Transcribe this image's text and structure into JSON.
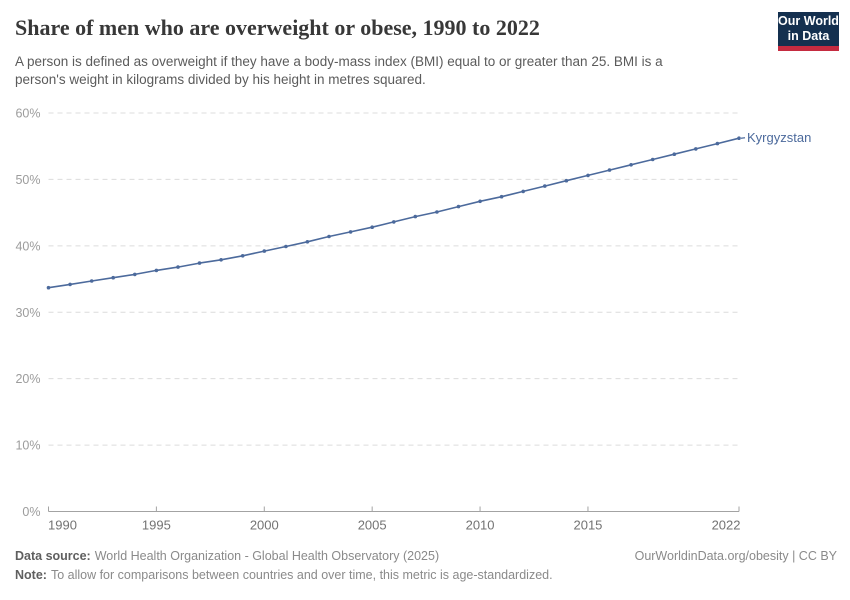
{
  "header": {
    "title": "Share of men who are overweight or obese, 1990 to 2022",
    "subtitle_lines": [
      "A person is defined as overweight if they have a body-mass index (BMI) equal to or greater than 25. BMI is a",
      "person's weight in kilograms divided by his height in metres squared."
    ],
    "logo": {
      "line1": "Our World",
      "line2": "in Data",
      "bg_color": "#14304f",
      "stripe_color": "#c52b40"
    }
  },
  "chart_data": {
    "type": "line",
    "title": "Share of men who are overweight or obese, 1990 to 2022",
    "unit": "%",
    "xlim": [
      1990,
      2022
    ],
    "ylim": [
      0,
      60
    ],
    "x_ticks": [
      1990,
      1995,
      2000,
      2005,
      2010,
      2015,
      2022
    ],
    "y_ticks": [
      0,
      10,
      20,
      30,
      40,
      50,
      60
    ],
    "y_tick_labels": [
      "0%",
      "10%",
      "20%",
      "30%",
      "40%",
      "50%",
      "60%"
    ],
    "grid": "horizontal-dashed",
    "legend": "end-of-line-label",
    "colors": {
      "gridline": "#dcdcdc",
      "axis": "#a3a3a3",
      "y_tick_text": "#9c9c9c",
      "x_tick_text": "#737373"
    },
    "series": [
      {
        "name": "Kyrgyzstan",
        "color": "#4c6a9c",
        "x": [
          1990,
          1991,
          1992,
          1993,
          1994,
          1995,
          1996,
          1997,
          1998,
          1999,
          2000,
          2001,
          2002,
          2003,
          2004,
          2005,
          2006,
          2007,
          2008,
          2009,
          2010,
          2011,
          2012,
          2013,
          2014,
          2015,
          2016,
          2017,
          2018,
          2019,
          2020,
          2021,
          2022
        ],
        "values": [
          33.7,
          34.2,
          34.7,
          35.2,
          35.7,
          36.3,
          36.8,
          37.4,
          37.9,
          38.5,
          39.2,
          39.9,
          40.6,
          41.4,
          42.1,
          42.8,
          43.6,
          44.4,
          45.1,
          45.9,
          46.7,
          47.4,
          48.2,
          49.0,
          49.8,
          50.6,
          51.4,
          52.2,
          53.0,
          53.8,
          54.6,
          55.4,
          56.2
        ]
      }
    ]
  },
  "footer": {
    "data_source_label": "Data source:",
    "data_source": "World Health Organization - Global Health Observatory (2025)",
    "note_label": "Note:",
    "note": "To allow for comparisons between countries and over time, this metric is age-standardized.",
    "rights": "OurWorldinData.org/obesity | CC BY"
  }
}
